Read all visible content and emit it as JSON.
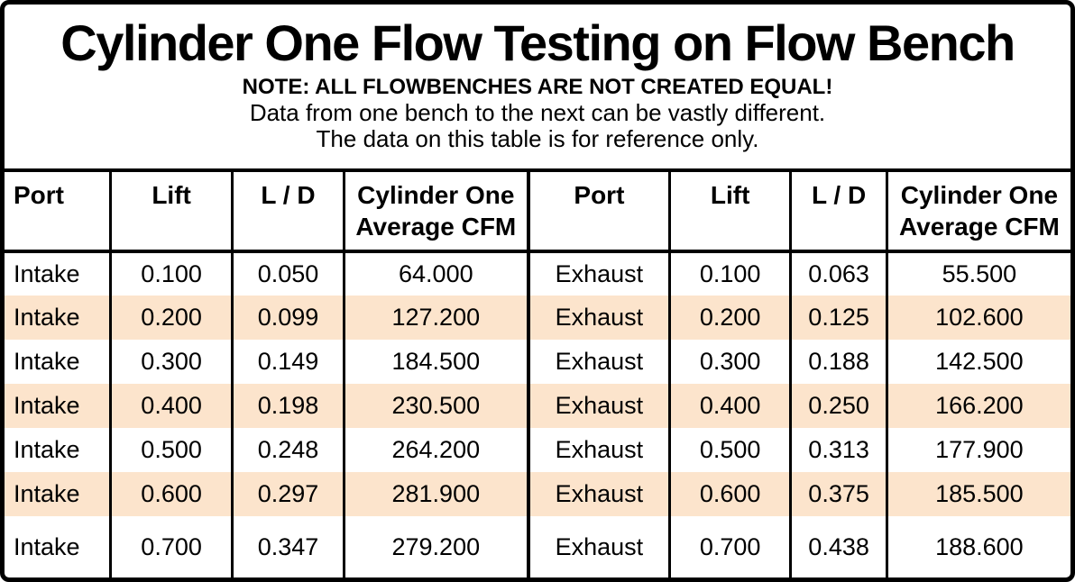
{
  "title": "Cylinder One Flow Testing on Flow Bench",
  "note": {
    "line1": "NOTE: ALL FLOWBENCHES ARE NOT CREATED EQUAL!",
    "line2": "Data from one bench to the next can be vastly different.",
    "line3": "The data on this table is for reference only."
  },
  "colors": {
    "row_highlight": "#FCE4CC",
    "border": "#000000",
    "background": "#FFFFFF"
  },
  "table": {
    "headers": [
      "Port",
      "Lift",
      "L / D",
      "Cylinder One\nAverage CFM",
      "Port",
      "Lift",
      "L / D",
      "Cylinder One\nAverage CFM"
    ],
    "rows": [
      {
        "cells": [
          "Intake",
          "0.100",
          "0.050",
          "64.000",
          "Exhaust",
          "0.100",
          "0.063",
          "55.500"
        ],
        "highlight": false
      },
      {
        "cells": [
          "Intake",
          "0.200",
          "0.099",
          "127.200",
          "Exhaust",
          "0.200",
          "0.125",
          "102.600"
        ],
        "highlight": true
      },
      {
        "cells": [
          "Intake",
          "0.300",
          "0.149",
          "184.500",
          "Exhaust",
          "0.300",
          "0.188",
          "142.500"
        ],
        "highlight": false
      },
      {
        "cells": [
          "Intake",
          "0.400",
          "0.198",
          "230.500",
          "Exhaust",
          "0.400",
          "0.250",
          "166.200"
        ],
        "highlight": true
      },
      {
        "cells": [
          "Intake",
          "0.500",
          "0.248",
          "264.200",
          "Exhaust",
          "0.500",
          "0.313",
          "177.900"
        ],
        "highlight": false
      },
      {
        "cells": [
          "Intake",
          "0.600",
          "0.297",
          "281.900",
          "Exhaust",
          "0.600",
          "0.375",
          "185.500"
        ],
        "highlight": true
      },
      {
        "cells": [
          "Intake",
          "0.700",
          "0.347",
          "279.200",
          "Exhaust",
          "0.700",
          "0.438",
          "188.600"
        ],
        "highlight": false
      }
    ]
  },
  "chart_data": {
    "type": "table",
    "title": "Cylinder One Flow Testing on Flow Bench",
    "series": [
      {
        "name": "Intake Average CFM",
        "x_lift": [
          0.1,
          0.2,
          0.3,
          0.4,
          0.5,
          0.6,
          0.7
        ],
        "l_over_d": [
          0.05,
          0.099,
          0.149,
          0.198,
          0.248,
          0.297,
          0.347
        ],
        "values": [
          64.0,
          127.2,
          184.5,
          230.5,
          264.2,
          281.9,
          279.2
        ]
      },
      {
        "name": "Exhaust Average CFM",
        "x_lift": [
          0.1,
          0.2,
          0.3,
          0.4,
          0.5,
          0.6,
          0.7
        ],
        "l_over_d": [
          0.063,
          0.125,
          0.188,
          0.25,
          0.313,
          0.375,
          0.438
        ],
        "values": [
          55.5,
          102.6,
          142.5,
          166.2,
          177.9,
          185.5,
          188.6
        ]
      }
    ]
  }
}
